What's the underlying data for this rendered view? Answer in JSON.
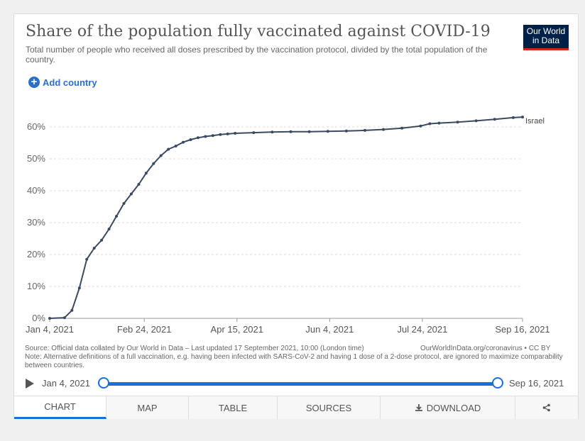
{
  "header": {
    "title": "Share of the population fully vaccinated against COVID-19",
    "subtitle": "Total number of people who received all doses prescribed by the vaccination protocol, divided by the total population of the country.",
    "logo_line1": "Our World",
    "logo_line2": "in Data"
  },
  "controls": {
    "add_country": "Add country"
  },
  "chart_data": {
    "type": "line",
    "title": "Share of the population fully vaccinated against COVID-19",
    "xlabel": "",
    "ylabel": "",
    "ylim": [
      0,
      64
    ],
    "xlim": [
      0,
      255
    ],
    "y_ticks": [
      0,
      10,
      20,
      30,
      40,
      50,
      60
    ],
    "y_tick_labels": [
      "0%",
      "10%",
      "20%",
      "30%",
      "40%",
      "50%",
      "60%"
    ],
    "x_ticks": [
      0,
      51,
      101,
      151,
      201,
      255
    ],
    "x_tick_labels": [
      "Jan 4, 2021",
      "Feb 24, 2021",
      "Apr 15, 2021",
      "Jun 4, 2021",
      "Jul 24, 2021",
      "Sep 16, 2021"
    ],
    "grid": true,
    "series": [
      {
        "name": "Israel",
        "color": "#3c4a61",
        "x": [
          0,
          8,
          12,
          16,
          20,
          24,
          28,
          32,
          36,
          40,
          44,
          48,
          52,
          56,
          60,
          64,
          68,
          72,
          76,
          80,
          84,
          88,
          92,
          96,
          100,
          110,
          120,
          130,
          140,
          150,
          160,
          170,
          180,
          190,
          200,
          205,
          210,
          220,
          230,
          240,
          250,
          255
        ],
        "values": [
          0,
          0.2,
          2.5,
          9.5,
          18.5,
          22,
          24.5,
          28,
          32,
          36,
          39,
          42,
          45.5,
          48.5,
          51,
          53,
          54,
          55.2,
          56,
          56.6,
          57,
          57.3,
          57.6,
          57.8,
          58,
          58.2,
          58.4,
          58.5,
          58.5,
          58.6,
          58.7,
          58.9,
          59.2,
          59.6,
          60.3,
          61,
          61.2,
          61.5,
          61.9,
          62.4,
          62.9,
          63.1
        ]
      }
    ]
  },
  "footer": {
    "source": "Source: Official data collated by Our World in Data – Last updated 17 September 2021, 10:00 (London time)",
    "url": "OurWorldInData.org/coronavirus • CC BY",
    "note": "Note: Alternative definitions of a full vaccination, e.g. having been infected with SARS-CoV-2 and having 1 dose of a 2-dose protocol, are ignored to maximize comparability between countries."
  },
  "timeline": {
    "start": "Jan 4, 2021",
    "end": "Sep 16, 2021"
  },
  "tabs": [
    {
      "label": "CHART"
    },
    {
      "label": "MAP"
    },
    {
      "label": "TABLE"
    },
    {
      "label": "SOURCES"
    },
    {
      "label": "DOWNLOAD"
    },
    {
      "label": ""
    }
  ]
}
